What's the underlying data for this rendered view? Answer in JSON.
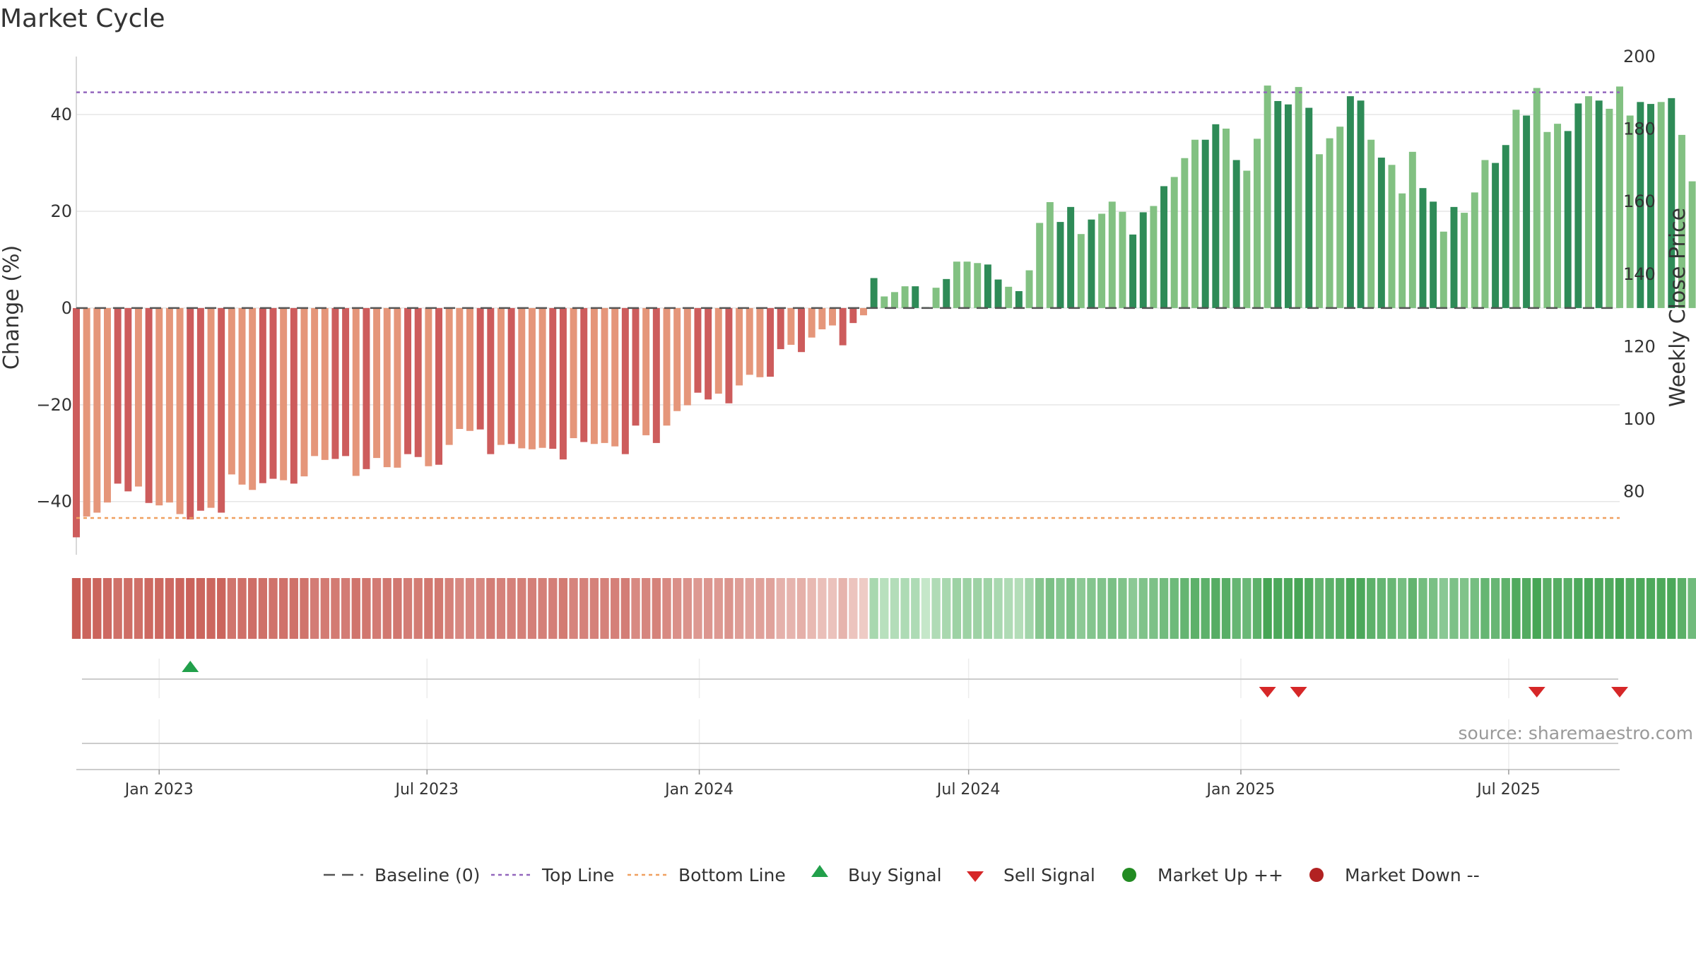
{
  "title": "Market Cycle",
  "source": "source: sharemaestro.com",
  "colors": {
    "bar_neg_dark": "#cd5c5c",
    "bar_neg_light": "#e5967a",
    "bar_pos_dark": "#2e8b57",
    "bar_pos_light": "#82c182",
    "top_line": "#9467bd",
    "bottom_line": "#f0a060",
    "baseline": "#555555",
    "buy": "#22a04b",
    "sell": "#d62728",
    "market_up": "#228b22",
    "market_down": "#b22222",
    "grid": "#e6e6e6"
  },
  "chart_data": {
    "type": "bar",
    "title": "Market Cycle",
    "ylabel": "Change (%)",
    "y2label": "Weekly Close Price",
    "ylim": [
      -51,
      52
    ],
    "y2lim": [
      62.6,
      200
    ],
    "yticks": [
      -40,
      -20,
      0,
      20,
      40
    ],
    "yticklabels": [
      "−40",
      "−20",
      "0",
      "20",
      "40"
    ],
    "y2ticks": [
      80,
      100,
      120,
      140,
      160,
      180,
      200
    ],
    "grid": true,
    "x_start": "2022-11-06",
    "x_end": "2025-09-14",
    "xticks": [
      {
        "date": "2023-01-01",
        "label": "Jan 2023"
      },
      {
        "date": "2023-07-01",
        "label": "Jul 2023"
      },
      {
        "date": "2024-01-01",
        "label": "Jan 2024"
      },
      {
        "date": "2024-07-01",
        "label": "Jul 2024"
      },
      {
        "date": "2025-01-01",
        "label": "Jan 2025"
      },
      {
        "date": "2025-07-01",
        "label": "Jul 2025"
      }
    ],
    "first_week": "2022-11-06",
    "values": [
      -47.4,
      -43.1,
      -42.3,
      -40.2,
      -36.3,
      -37.9,
      -36.9,
      -40.3,
      -40.8,
      -40.2,
      -42.6,
      -43.7,
      -41.9,
      -41.3,
      -42.3,
      -34.4,
      -36.5,
      -37.6,
      -36.2,
      -35.3,
      -35.6,
      -36.3,
      -34.8,
      -30.6,
      -31.4,
      -31.2,
      -30.6,
      -34.7,
      -33.3,
      -31.0,
      -32.9,
      -33.0,
      -30.2,
      -30.8,
      -32.7,
      -32.4,
      -28.3,
      -25.0,
      -25.4,
      -25.1,
      -30.2,
      -28.3,
      -28.1,
      -29.0,
      -29.2,
      -28.9,
      -29.1,
      -31.3,
      -26.9,
      -27.7,
      -28.1,
      -27.9,
      -28.6,
      -30.2,
      -24.3,
      -26.3,
      -27.9,
      -24.3,
      -21.3,
      -20.1,
      -17.5,
      -18.9,
      -17.7,
      -19.7,
      -16.0,
      -13.8,
      -14.3,
      -14.2,
      -8.5,
      -7.6,
      -9.1,
      -6.1,
      -4.4,
      -3.6,
      -7.7,
      -3.1,
      -1.5,
      6.2,
      2.4,
      3.3,
      4.5,
      4.5,
      0.2,
      4.2,
      6.0,
      9.6,
      9.6,
      9.3,
      9.0,
      5.9,
      4.4,
      3.5,
      7.8,
      17.6,
      21.9,
      17.8,
      20.9,
      15.3,
      18.3,
      19.5,
      22.0,
      19.9,
      15.2,
      19.8,
      21.1,
      25.2,
      27.1,
      31.0,
      34.8,
      34.8,
      38.0,
      37.1,
      30.6,
      28.4,
      35.0,
      46.0,
      42.8,
      42.1,
      45.7,
      41.4,
      31.8,
      35.1,
      37.5,
      43.8,
      42.9,
      34.8,
      31.1,
      29.6,
      23.7,
      32.3,
      24.8,
      22.0,
      15.8,
      20.9,
      19.7,
      23.9,
      30.6,
      30.0,
      33.7,
      41.0,
      39.8,
      45.5,
      36.4,
      38.1,
      36.6,
      42.3,
      43.8,
      42.9,
      41.2,
      45.8,
      39.8,
      42.6,
      42.2,
      42.6,
      43.4,
      35.8,
      26.2
    ],
    "bar_color_cycle": [
      "dark",
      "light",
      "light",
      "light",
      "dark",
      "dark",
      "light"
    ],
    "buy_signals": [
      {
        "index": 11
      }
    ],
    "sell_signals": [
      {
        "index": 115
      },
      {
        "index": 118
      },
      {
        "index": 141
      },
      {
        "index": 149
      }
    ],
    "top_line": 44.6,
    "bottom_line": -43.4,
    "baseline": 0,
    "legend_position": "bottom-center",
    "legend": [
      {
        "key": "baseline",
        "label": "Baseline (0)"
      },
      {
        "key": "top",
        "label": "Top Line"
      },
      {
        "key": "bottom",
        "label": "Bottom Line"
      },
      {
        "key": "buy",
        "label": "Buy Signal"
      },
      {
        "key": "sell",
        "label": "Sell Signal"
      },
      {
        "key": "up",
        "label": "Market Up ++"
      },
      {
        "key": "down",
        "label": "Market Down --"
      }
    ]
  }
}
